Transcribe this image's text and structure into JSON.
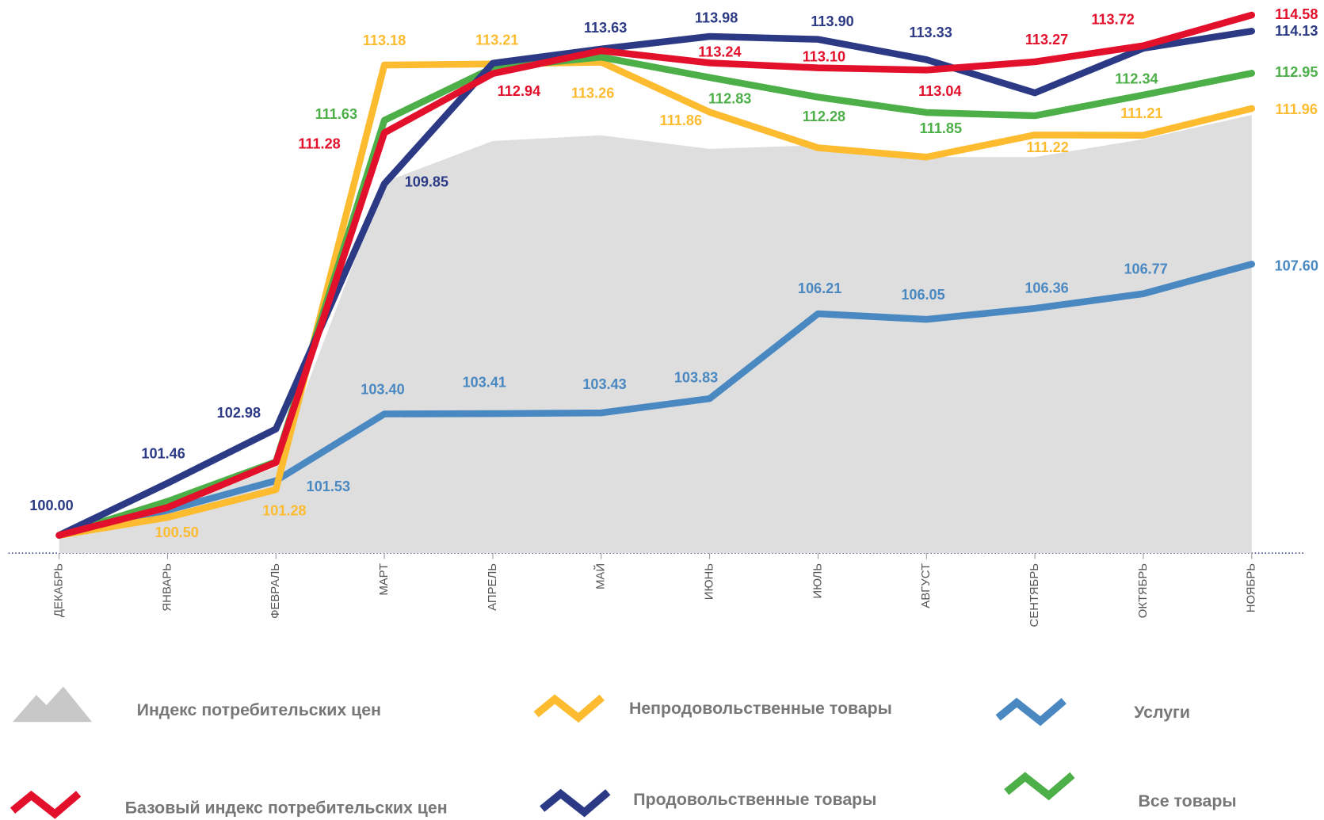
{
  "chart_data": {
    "type": "line",
    "categories": [
      "ДЕКАБРЬ",
      "ЯНВАРЬ",
      "ФЕВРАЛЬ",
      "МАРТ",
      "АПРЕЛЬ",
      "МАЙ",
      "ИЮНЬ",
      "ИЮЛЬ",
      "АВГУСТ",
      "СЕНТЯБРЬ",
      "ОКТЯБРЬ",
      "НОЯБРЬ"
    ],
    "ylim": [
      99.5,
      115
    ],
    "series": [
      {
        "name": "Индекс потребительских цен",
        "color": "#dedede",
        "area": true,
        "values": [
          100,
          100.8,
          101.9,
          109.9,
          111.05,
          111.21,
          110.83,
          110.93,
          110.6,
          110.6,
          111.1,
          111.78
        ]
      },
      {
        "name": "Услуги",
        "color": "#4a88c2",
        "values": [
          100,
          100.7,
          101.53,
          103.4,
          103.41,
          103.43,
          103.83,
          106.21,
          106.05,
          106.36,
          106.77,
          107.6
        ],
        "value_labels": [
          null,
          null,
          "101.53",
          "103.40",
          "103.41",
          "103.43",
          "103.83",
          "106.21",
          "106.05",
          "106.36",
          "106.77",
          "107.60"
        ]
      },
      {
        "name": "Непродовольственные товары",
        "color": "#fdbb30",
        "values": [
          100,
          100.5,
          101.28,
          113.18,
          113.21,
          113.26,
          111.86,
          110.86,
          110.6,
          111.22,
          111.21,
          111.96
        ],
        "value_labels": [
          null,
          "100.50",
          "101.28",
          "113.18",
          "113.21",
          "113.26",
          "111.86",
          null,
          null,
          "111.22",
          "111.21",
          "111.96"
        ]
      },
      {
        "name": "Все товары",
        "color": "#4caf48",
        "values": [
          100,
          100.95,
          102.06,
          111.63,
          113.1,
          113.4,
          112.83,
          112.28,
          111.85,
          111.76,
          112.34,
          112.95
        ],
        "value_labels": [
          null,
          null,
          null,
          "111.63",
          null,
          null,
          "112.83",
          "112.28",
          "111.85",
          null,
          "112.34",
          "112.95"
        ]
      },
      {
        "name": "Продовольственные товары",
        "color": "#2c3a85",
        "values": [
          100,
          101.46,
          102.98,
          109.85,
          113.23,
          113.63,
          113.98,
          113.9,
          113.33,
          112.4,
          113.65,
          114.13
        ],
        "value_labels": [
          "100.00",
          "101.46",
          "102.98",
          "109.85",
          null,
          "113.63",
          "113.98",
          "113.90",
          "113.33",
          null,
          null,
          "114.13"
        ]
      },
      {
        "name": "Базовый индекс потребительских цен",
        "color": "#e3102c",
        "values": [
          100,
          100.78,
          102.04,
          111.28,
          112.94,
          113.58,
          113.24,
          113.1,
          113.04,
          113.27,
          113.72,
          114.58
        ],
        "value_labels": [
          null,
          null,
          null,
          "111.28",
          "112.94",
          null,
          "113.24",
          "113.10",
          "113.04",
          "113.27",
          "113.72",
          "114.58"
        ]
      }
    ]
  }
}
